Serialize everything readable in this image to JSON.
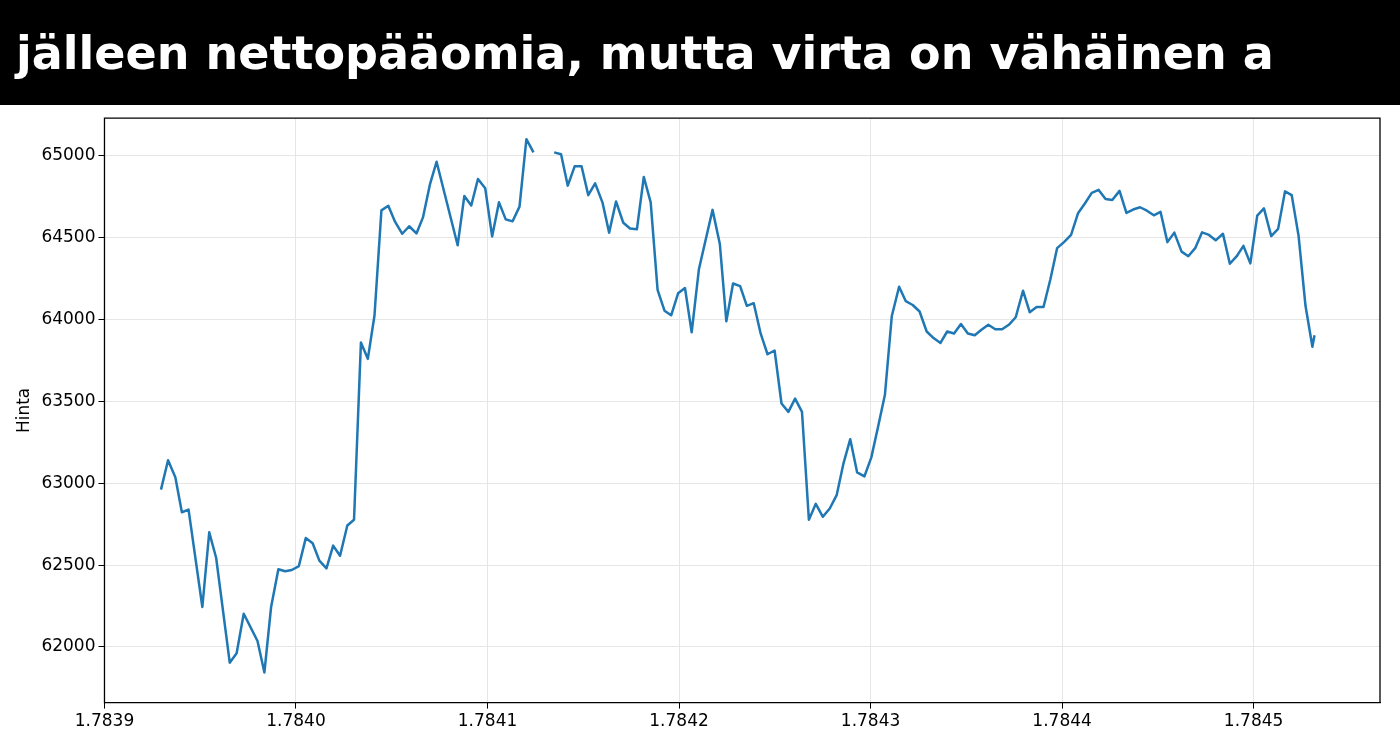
{
  "chart_data": {
    "type": "line",
    "title": "jälleen nettopääomia, mutta virta on vähäinen a",
    "ylabel": "Hinta",
    "xlim": [
      1.7839,
      1.784566
    ],
    "xticks": [
      1.7839,
      {
        "value": 1.784,
        "label": "1.7840"
      },
      1.7841,
      1.7842,
      1.7843,
      1.7844,
      1.7845
    ],
    "ylim": [
      61660,
      65230
    ],
    "yticks": [
      62000,
      62500,
      63000,
      63500,
      64000,
      64500,
      65000
    ],
    "grid": true,
    "legend": false,
    "marker": "none",
    "line_style": "solid",
    "series": [
      {
        "color": "#1f77b4",
        "x": [
          1.7839295,
          1.7839332,
          1.783937,
          1.7839404,
          1.7839439,
          1.7839511,
          1.7839547,
          1.7839583,
          1.7839654,
          1.783969,
          1.7839727,
          1.7839799,
          1.7839835,
          1.783987,
          1.7839908,
          1.7839943,
          1.7839978,
          1.7840015,
          1.7840051,
          1.7840087,
          1.7840122,
          1.7840159,
          1.7840194,
          1.784023,
          1.7840268,
          1.7840303,
          1.7840339,
          1.7840375,
          1.784041,
          1.7840446,
          1.7840482,
          1.7840517,
          1.7840555,
          1.7840591,
          1.7840629,
          1.7840663,
          1.7840699,
          1.7840734,
          1.7840844,
          1.7840879,
          1.7840915,
          1.784095,
          1.7840988,
          1.7841024,
          1.784106,
          1.7841095,
          1.7841131,
          1.7841167,
          1.7841203,
          1.784124,
          1.7841292,
          1.7841348,
          1.7841384,
          1.7841419,
          1.7841455,
          1.7841491,
          1.7841526,
          1.7841562,
          1.78416,
          1.7841635,
          1.7841671,
          1.7841709,
          1.7841744,
          1.784178,
          1.7841816,
          1.7841852,
          1.7841888,
          1.7841924,
          1.7841959,
          1.7841995,
          1.7842031,
          1.7842066,
          1.7842104,
          1.7842175,
          1.7842213,
          1.7842247,
          1.7842282,
          1.7842319,
          1.7842354,
          1.784239,
          1.7842426,
          1.7842462,
          1.7842499,
          1.7842535,
          1.7842571,
          1.7842606,
          1.7842642,
          1.7842678,
          1.7842714,
          1.7842751,
          1.7842787,
          1.7842823,
          1.7842859,
          1.7842894,
          1.784293,
          1.7842968,
          1.7843004,
          1.7843039,
          1.7843075,
          1.7843111,
          1.7843149,
          1.7843184,
          1.784322,
          1.7843256,
          1.7843293,
          1.7843329,
          1.7843365,
          1.78434,
          1.7843436,
          1.7843472,
          1.7843508,
          1.7843544,
          1.7843579,
          1.7843615,
          1.7843651,
          1.7843687,
          1.7843722,
          1.7843758,
          1.7843796,
          1.7843831,
          1.7843867,
          1.7843903,
          1.7843939,
          1.7843974,
          1.784401,
          1.7844047,
          1.7844084,
          1.7844119,
          1.7844155,
          1.7844191,
          1.7844227,
          1.7844262,
          1.78443,
          1.7844336,
          1.7844371,
          1.7844407,
          1.7844443,
          1.7844479,
          1.7844514,
          1.784455,
          1.7844586,
          1.7844624,
          1.7844659,
          1.7844695,
          1.7844731,
          1.7844767,
          1.7844802,
          1.784484,
          1.7844876,
          1.7844912,
          1.7844947,
          1.7844983,
          1.7845019,
          1.7845054,
          1.7845092,
          1.7845128,
          1.7845164,
          1.7845199,
          1.7845235,
          1.7845271,
          1.7845307,
          1.7845318
        ],
        "values": [
          62961,
          63140,
          63037,
          62823,
          62839,
          62244,
          62700,
          62545,
          61904,
          61961,
          62203,
          62036,
          61844,
          62244,
          62475,
          62462,
          62470,
          62494,
          62665,
          62633,
          62527,
          62480,
          62619,
          62557,
          62742,
          62777,
          63860,
          63760,
          64026,
          64667,
          64695,
          64598,
          64524,
          64570,
          64526,
          64624,
          64824,
          64964,
          64454,
          64755,
          64697,
          64859,
          64802,
          64508,
          64716,
          64612,
          64600,
          64690,
          65102,
          65021,
          null,
          65021,
          65010,
          64818,
          64936,
          64936,
          64760,
          64832,
          64716,
          64531,
          64721,
          64591,
          64556,
          64551,
          64871,
          64716,
          64181,
          64054,
          64026,
          64160,
          64193,
          63922,
          64309,
          64670,
          64462,
          63989,
          64220,
          64204,
          64084,
          64100,
          63915,
          63788,
          63811,
          63487,
          63436,
          63517,
          63436,
          62777,
          62874,
          62795,
          62846,
          62927,
          63123,
          63269,
          63066,
          63042,
          63158,
          63344,
          63540,
          64022,
          64200,
          64112,
          64089,
          64049,
          63927,
          63887,
          63857,
          63927,
          63915,
          63973,
          63915,
          63904,
          63938,
          63968,
          63941,
          63941,
          63968,
          64014,
          64176,
          64045,
          64077,
          64077,
          64246,
          64436,
          64473,
          64517,
          64651,
          64709,
          64774,
          64792,
          64737,
          64730,
          64786,
          64651,
          64672,
          64686,
          64665,
          64637,
          64658,
          64473,
          64531,
          64415,
          64387,
          64436,
          64533,
          64517,
          64484,
          64524,
          64341,
          64387,
          64450,
          64343,
          64635,
          64679,
          64510,
          64554,
          64783,
          64760,
          64510,
          64084,
          63834,
          63904
        ]
      }
    ]
  }
}
